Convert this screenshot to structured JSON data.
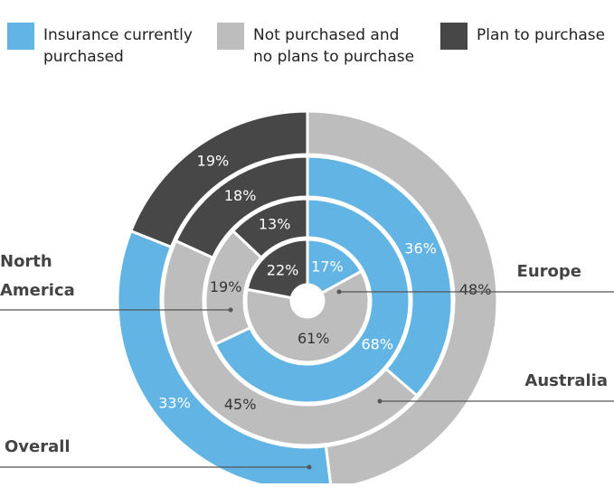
{
  "chart_data": {
    "type": "nested-donut",
    "series": [
      {
        "name": "Insurance currently purchased",
        "color": "#62b4e4"
      },
      {
        "name": "Not purchased and no plans to purchase",
        "color": "#bdbdbd"
      },
      {
        "name": "Plan to purchase",
        "color": "#474747"
      }
    ],
    "rings": [
      {
        "name": "Europe",
        "values": [
          17,
          61,
          22
        ],
        "value_labels": [
          "17%",
          "61%",
          "22%"
        ],
        "segment_order": [
          0,
          1,
          2
        ]
      },
      {
        "name": "North America",
        "values": [
          68,
          19,
          13
        ],
        "value_labels": [
          "68%",
          "19%",
          "13%"
        ],
        "segment_order": [
          0,
          1,
          2
        ]
      },
      {
        "name": "Australia",
        "values": [
          36,
          45,
          18
        ],
        "value_labels": [
          "36%",
          "45%",
          "18%"
        ],
        "segment_order": [
          0,
          1,
          2
        ]
      },
      {
        "name": "Overall",
        "values": [
          33,
          48,
          19
        ],
        "value_labels": [
          "33%",
          "48%",
          "19%"
        ],
        "segment_order": [
          1,
          0,
          2
        ]
      }
    ]
  }
}
